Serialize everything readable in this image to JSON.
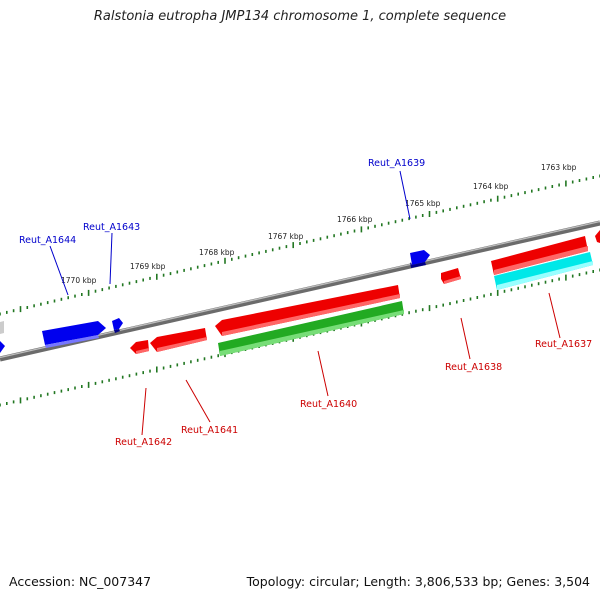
{
  "title": "Ralstonia eutropha JMP134 chromosome 1, complete sequence",
  "footer": {
    "accession": "Accession: NC_007347",
    "summary": "Topology: circular; Length: 3,806,533 bp; Genes: 3,504"
  },
  "colors": {
    "forward_gene": "#0000ee",
    "reverse_gene": "#ee0000",
    "rna_green": "#22aa22",
    "rna_cyan": "#00e8e8",
    "backbone": "#777777",
    "tick": "#227722"
  },
  "kbp_labels": [
    "1763 kbp",
    "1764 kbp",
    "1765 kbp",
    "1766 kbp",
    "1767 kbp",
    "1768 kbp",
    "1769 kbp",
    "1770 kbp"
  ],
  "genes": [
    {
      "label": "Reut_A1639",
      "strand": "forward"
    },
    {
      "label": "Reut_A1643",
      "strand": "forward"
    },
    {
      "label": "Reut_A1644",
      "strand": "forward"
    },
    {
      "label": "Reut_A1637",
      "strand": "reverse"
    },
    {
      "label": "Reut_A1638",
      "strand": "reverse"
    },
    {
      "label": "Reut_A1640",
      "strand": "reverse"
    },
    {
      "label": "Reut_A1641",
      "strand": "reverse"
    },
    {
      "label": "Reut_A1642",
      "strand": "reverse"
    }
  ]
}
